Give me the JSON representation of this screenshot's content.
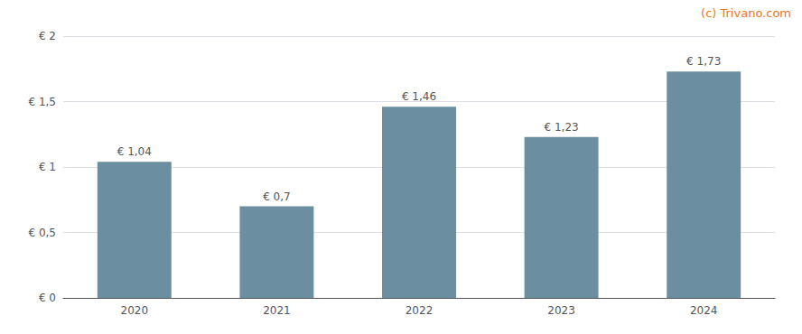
{
  "chart_data": {
    "type": "bar",
    "categories": [
      "2020",
      "2021",
      "2022",
      "2023",
      "2024"
    ],
    "values": [
      1.04,
      0.7,
      1.46,
      1.23,
      1.73
    ],
    "value_labels": [
      "€ 1,04",
      "€ 0,7",
      "€ 1,46",
      "€ 1,23",
      "€ 1,73"
    ],
    "data_labels": true,
    "color": "#6b8fa0",
    "ylim": [
      0,
      2.0
    ],
    "yticks": [
      {
        "value": 0,
        "label": "€ 0"
      },
      {
        "value": 0.5,
        "label": "€ 0,5"
      },
      {
        "value": 1.0,
        "label": "€ 1"
      },
      {
        "value": 1.5,
        "label": "€ 1,5"
      },
      {
        "value": 2.0,
        "label": "€ 2"
      }
    ],
    "grid": true,
    "annotations": [
      {
        "text": "(c) Trivano.com",
        "color": "#e87722"
      }
    ]
  }
}
